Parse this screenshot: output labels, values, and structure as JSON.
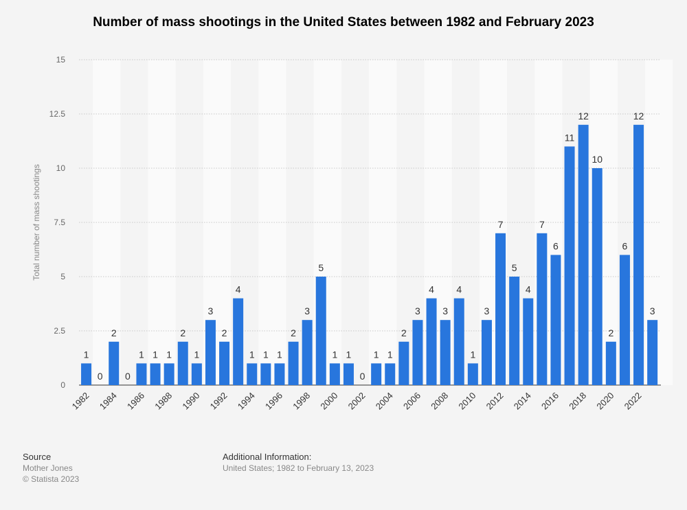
{
  "chart_data": {
    "type": "bar",
    "title": "Number of mass shootings in the United States between 1982 and February 2023",
    "xlabel": "",
    "ylabel": "Total number of mass shootings",
    "ylim": [
      0,
      15
    ],
    "yticks": [
      "0",
      "2.5",
      "5",
      "7.5",
      "10",
      "12.5",
      "15"
    ],
    "grid": true,
    "bar_color": "#2876dd",
    "categories": [
      "1982",
      "1983",
      "1984",
      "1985",
      "1986",
      "1987",
      "1988",
      "1989",
      "1990",
      "1991",
      "1992",
      "1993",
      "1994",
      "1995",
      "1996",
      "1997",
      "1998",
      "1999",
      "2000",
      "2001",
      "2002",
      "2003",
      "2004",
      "2005",
      "2006",
      "2007",
      "2008",
      "2009",
      "2010",
      "2011",
      "2012",
      "2013",
      "2014",
      "2015",
      "2016",
      "2017",
      "2018",
      "2019",
      "2020",
      "2021",
      "2022",
      "2023"
    ],
    "values": [
      1,
      0,
      2,
      0,
      1,
      1,
      1,
      2,
      1,
      3,
      2,
      4,
      1,
      1,
      1,
      2,
      3,
      5,
      1,
      1,
      0,
      1,
      1,
      2,
      3,
      4,
      3,
      4,
      1,
      3,
      7,
      5,
      4,
      7,
      6,
      11,
      12,
      10,
      2,
      6,
      12,
      3
    ]
  },
  "footer": {
    "source_label": "Source",
    "source_lines": [
      "Mother Jones",
      "© Statista 2023"
    ],
    "info_label": "Additional Information:",
    "info_text": "United States; 1982 to February 13, 2023"
  }
}
